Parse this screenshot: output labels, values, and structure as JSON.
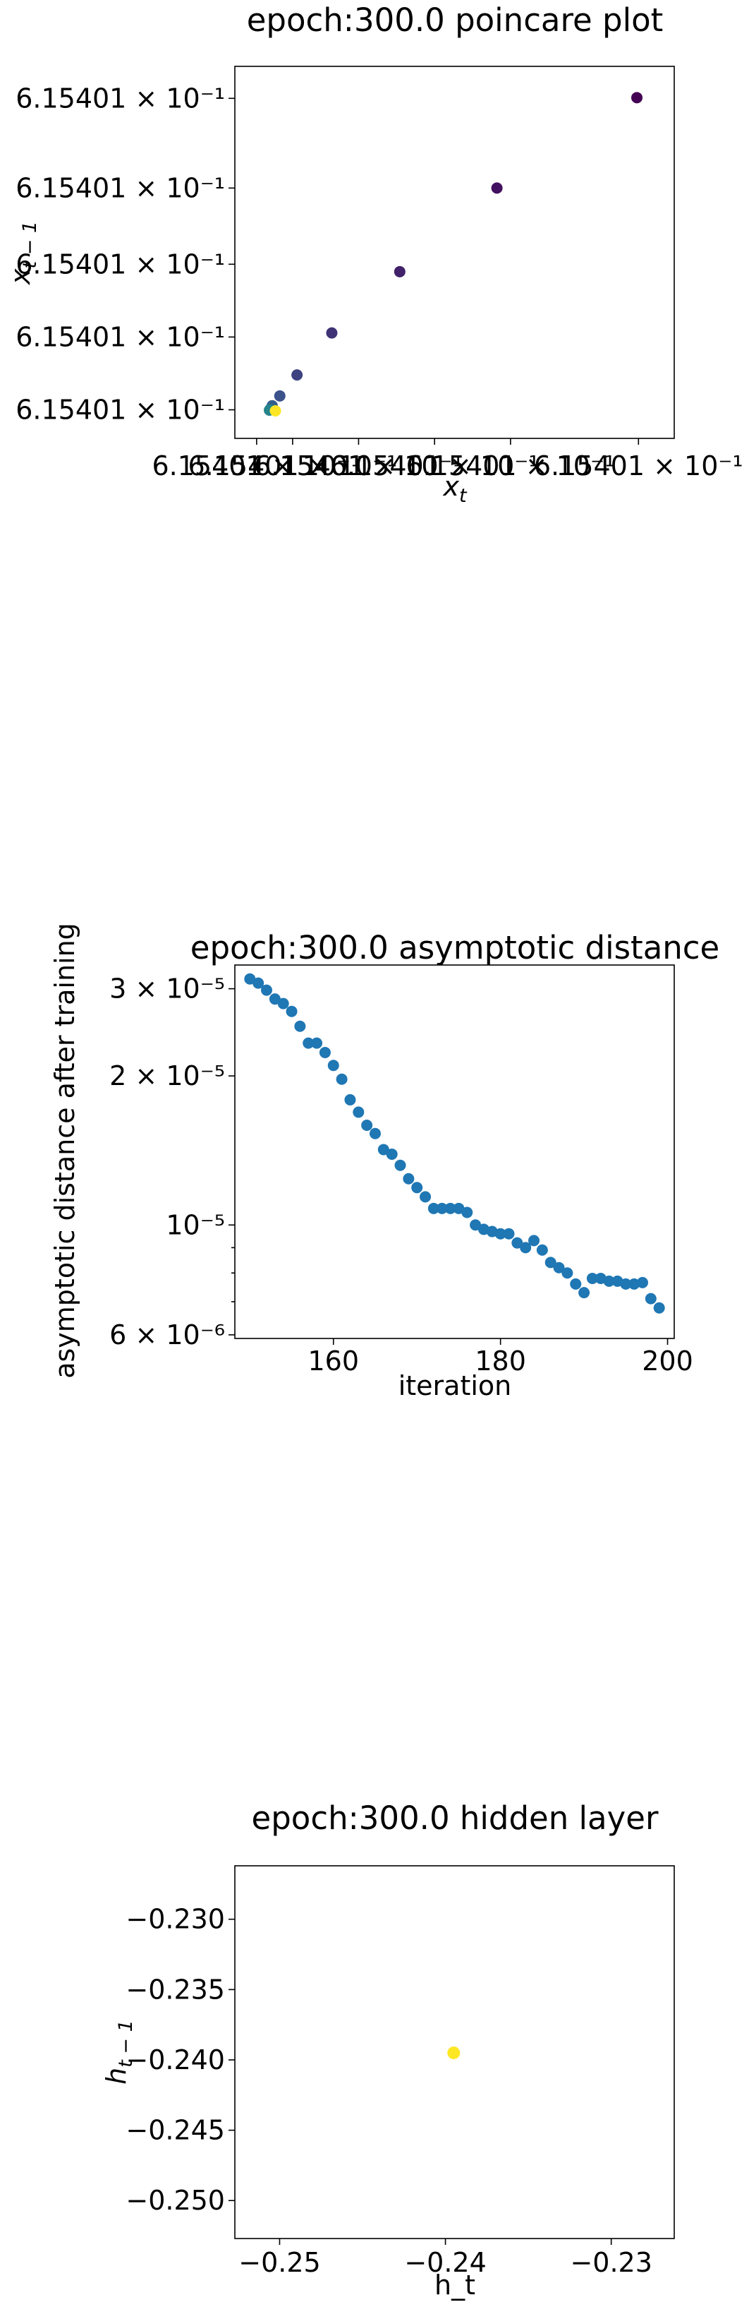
{
  "chart_data": [
    {
      "type": "scatter",
      "title": "epoch:300.0 poincare plot",
      "xlabel": "x_t",
      "ylabel": "x_{t-1}",
      "xtick_labels": [
        "6.15401 × 10⁻¹",
        "6.15401 × 10⁻¹",
        "6.15401 × 10⁻¹",
        "6.15401 × 10⁻¹",
        "6.15401 × 10⁻¹",
        "6.15401 × 10⁻¹"
      ],
      "ytick_labels": [
        "6.15401 × 10⁻¹",
        "6.15401 × 10⁻¹",
        "6.15401 × 10⁻¹",
        "6.15401 × 10⁻¹",
        "6.15401 × 10⁻¹"
      ],
      "colormap": "viridis",
      "xlim": [
        0,
        1
      ],
      "ylim": [
        0,
        1
      ],
      "points": [
        {
          "x": 0.956,
          "y": 0.957,
          "t": 0.0
        },
        {
          "x": 0.606,
          "y": 0.69,
          "t": 0.05
        },
        {
          "x": 0.363,
          "y": 0.443,
          "t": 0.1
        },
        {
          "x": 0.193,
          "y": 0.262,
          "t": 0.15
        },
        {
          "x": 0.106,
          "y": 0.138,
          "t": 0.2
        },
        {
          "x": 0.063,
          "y": 0.076,
          "t": 0.25
        },
        {
          "x": 0.044,
          "y": 0.047,
          "t": 0.3
        },
        {
          "x": 0.039,
          "y": 0.037,
          "t": 0.35
        },
        {
          "x": 0.037,
          "y": 0.034,
          "t": 0.45
        },
        {
          "x": 0.052,
          "y": 0.032,
          "t": 1.0
        }
      ]
    },
    {
      "type": "scatter",
      "title": "epoch:300.0 asymptotic distance",
      "xlabel": "iteration",
      "ylabel": "asymptotic distance after training",
      "yscale": "log",
      "xlim": [
        148.2,
        200.8
      ],
      "ylim": [
        5.9e-06,
        3.35e-05
      ],
      "xticks": [
        160,
        180,
        200
      ],
      "xtick_labels": [
        "160",
        "180",
        "200"
      ],
      "yticks": [
        6e-06,
        1e-05,
        2e-05,
        3e-05
      ],
      "ytick_labels": [
        "6 × 10⁻⁶",
        "10⁻⁵",
        "2 × 10⁻⁵",
        "3 × 10⁻⁵"
      ],
      "color": "#1f77b4",
      "x": [
        150,
        151,
        152,
        153,
        154,
        155,
        156,
        157,
        158,
        159,
        160,
        161,
        162,
        163,
        164,
        165,
        166,
        167,
        168,
        169,
        170,
        171,
        172,
        173,
        174,
        175,
        176,
        177,
        178,
        179,
        180,
        181,
        182,
        183,
        184,
        185,
        186,
        187,
        188,
        189,
        190,
        191,
        192,
        193,
        194,
        195,
        196,
        197,
        198,
        199
      ],
      "y": [
        3.14e-05,
        3.08e-05,
        2.98e-05,
        2.86e-05,
        2.8e-05,
        2.7e-05,
        2.52e-05,
        2.33e-05,
        2.33e-05,
        2.23e-05,
        2.1e-05,
        1.97e-05,
        1.79e-05,
        1.69e-05,
        1.59e-05,
        1.53e-05,
        1.42e-05,
        1.39e-05,
        1.32e-05,
        1.24e-05,
        1.19e-05,
        1.14e-05,
        1.08e-05,
        1.08e-05,
        1.08e-05,
        1.08e-05,
        1.06e-05,
        1e-05,
        9.8e-06,
        9.7e-06,
        9.6e-06,
        9.6e-06,
        9.2e-06,
        9e-06,
        9.3e-06,
        8.9e-06,
        8.4e-06,
        8.2e-06,
        8e-06,
        7.6e-06,
        7.3e-06,
        7.8e-06,
        7.8e-06,
        7.7e-06,
        7.7e-06,
        7.6e-06,
        7.6e-06,
        7.65e-06,
        7.1e-06,
        6.8e-06
      ]
    },
    {
      "type": "scatter",
      "title": "epoch:300.0 hidden layer",
      "xlabel": "h_t",
      "ylabel": "h_{t-1}",
      "xlim": [
        -0.2527,
        -0.2262
      ],
      "ylim": [
        -0.2527,
        -0.2262
      ],
      "xticks": [
        -0.25,
        -0.24,
        -0.23
      ],
      "xtick_labels": [
        "−0.25",
        "−0.24",
        "−0.23"
      ],
      "yticks": [
        -0.25,
        -0.245,
        -0.24,
        -0.235,
        -0.23
      ],
      "ytick_labels": [
        "−0.250",
        "−0.245",
        "−0.240",
        "−0.235",
        "−0.230"
      ],
      "color": "#fde725",
      "points": [
        {
          "x": -0.2395,
          "y": -0.2395
        }
      ]
    }
  ]
}
